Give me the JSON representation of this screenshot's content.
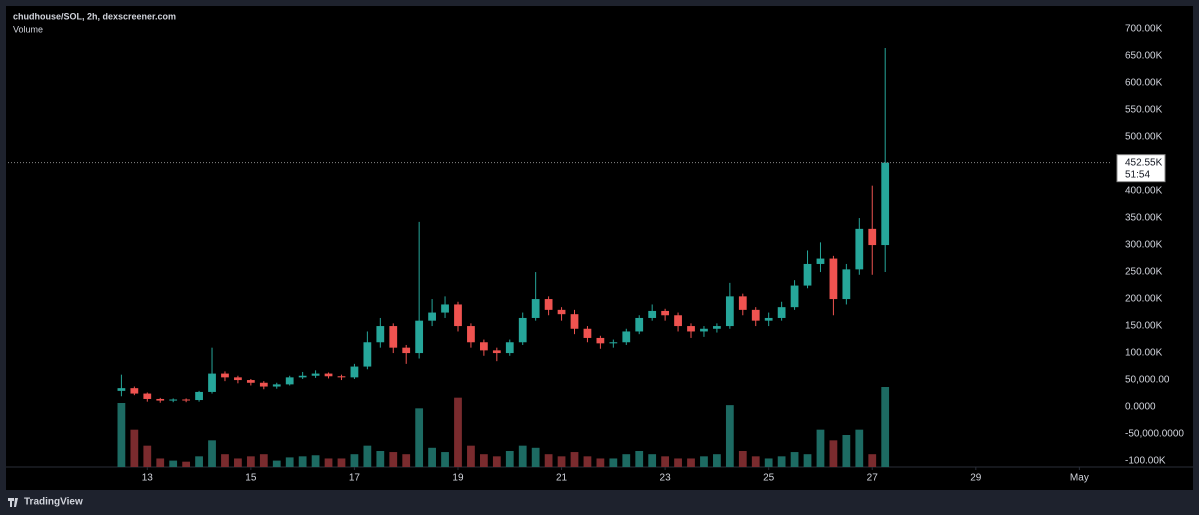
{
  "chart_data": {
    "type": "candlestick",
    "title": "chudhouse/SOL, 2h, dexscreener.com",
    "volume_label": "Volume",
    "x": [
      12.5,
      12.75,
      13,
      13.25,
      13.5,
      13.75,
      14,
      14.25,
      14.5,
      14.75,
      15,
      15.25,
      15.5,
      15.75,
      16,
      16.25,
      16.5,
      16.75,
      17,
      17.25,
      17.5,
      17.75,
      18,
      18.25,
      18.5,
      18.75,
      19,
      19.25,
      19.5,
      19.75,
      20,
      20.25,
      20.5,
      20.75,
      21,
      21.25,
      21.5,
      21.75,
      22,
      22.25,
      22.5,
      22.75,
      23,
      23.25,
      23.5,
      23.75,
      24,
      24.25,
      24.5,
      24.75,
      25,
      25.25,
      25.5,
      25.75,
      26,
      26.25,
      26.5,
      26.75,
      27,
      27.25
    ],
    "open": [
      30000,
      35000,
      25000,
      15000,
      12000,
      14000,
      13000,
      28000,
      62000,
      55000,
      50000,
      45000,
      38000,
      42000,
      55000,
      58000,
      62000,
      57000,
      55000,
      75000,
      120000,
      150000,
      110000,
      100000,
      160000,
      175000,
      190000,
      150000,
      120000,
      105000,
      100000,
      120000,
      165000,
      200000,
      180000,
      172000,
      145000,
      128000,
      118000,
      120000,
      140000,
      165000,
      178000,
      170000,
      150000,
      140000,
      145000,
      150000,
      205000,
      180000,
      160000,
      165000,
      185000,
      225000,
      265000,
      275000,
      200000,
      255000,
      330000,
      300000
    ],
    "high": [
      60000,
      38000,
      27000,
      17000,
      16000,
      16000,
      30000,
      110000,
      66000,
      58000,
      52000,
      48000,
      45000,
      58000,
      65000,
      68000,
      64000,
      60000,
      80000,
      140000,
      165000,
      155000,
      115000,
      343000,
      200000,
      205000,
      195000,
      155000,
      125000,
      110000,
      125000,
      175000,
      250000,
      205000,
      185000,
      180000,
      150000,
      132000,
      125000,
      145000,
      170000,
      190000,
      182000,
      175000,
      155000,
      150000,
      155000,
      230000,
      210000,
      185000,
      175000,
      195000,
      235000,
      290000,
      305000,
      280000,
      265000,
      350000,
      410000,
      665000
    ],
    "low": [
      20000,
      22000,
      10000,
      8000,
      9000,
      9000,
      10000,
      25000,
      48000,
      44000,
      40000,
      33000,
      34000,
      40000,
      52000,
      54000,
      53000,
      50000,
      52000,
      70000,
      110000,
      100000,
      80000,
      90000,
      150000,
      165000,
      140000,
      110000,
      95000,
      85000,
      95000,
      115000,
      160000,
      170000,
      160000,
      135000,
      120000,
      108000,
      110000,
      115000,
      135000,
      160000,
      160000,
      140000,
      128000,
      130000,
      138000,
      145000,
      170000,
      150000,
      150000,
      160000,
      180000,
      220000,
      250000,
      170000,
      190000,
      245000,
      245000,
      250000
    ],
    "close": [
      35000,
      25000,
      15000,
      12000,
      14000,
      13000,
      28000,
      62000,
      55000,
      50000,
      45000,
      38000,
      42000,
      55000,
      58000,
      62000,
      57000,
      55000,
      75000,
      120000,
      150000,
      110000,
      100000,
      160000,
      175000,
      190000,
      150000,
      120000,
      105000,
      100000,
      120000,
      165000,
      200000,
      180000,
      172000,
      145000,
      128000,
      118000,
      120000,
      140000,
      165000,
      178000,
      170000,
      150000,
      140000,
      145000,
      150000,
      205000,
      180000,
      160000,
      165000,
      185000,
      225000,
      265000,
      275000,
      200000,
      255000,
      330000,
      300000,
      452550
    ],
    "volume": [
      60000,
      35000,
      20000,
      8000,
      6000,
      5000,
      10000,
      25000,
      12000,
      8000,
      10000,
      12000,
      6000,
      9000,
      10000,
      11000,
      8000,
      8000,
      12000,
      20000,
      15000,
      14000,
      12000,
      55000,
      18000,
      14000,
      65000,
      20000,
      12000,
      10000,
      15000,
      20000,
      18000,
      12000,
      10000,
      14000,
      10000,
      8000,
      8000,
      12000,
      15000,
      12000,
      10000,
      8000,
      8000,
      10000,
      12000,
      58000,
      15000,
      10000,
      8000,
      10000,
      14000,
      12000,
      35000,
      25000,
      30000,
      35000,
      12000,
      75000
    ],
    "up_color": "#26a69a",
    "down_color": "#ef5350",
    "up_volume_color": "#1d6b63",
    "down_volume_color": "#7a2b2e",
    "xlim": [
      10.31,
      31.63
    ],
    "xticks": [
      13,
      15,
      17,
      19,
      21,
      23,
      25,
      27,
      29,
      {
        "value": 31,
        "label": "May"
      }
    ],
    "ylim": [
      -111000,
      739000
    ],
    "yticks": [
      {
        "value": -100000,
        "label": "-100.00K"
      },
      {
        "value": -50000,
        "label": "-50,000.0000"
      },
      {
        "value": 0,
        "label": "0.0000"
      },
      {
        "value": 50000,
        "label": "50,000.00"
      },
      {
        "value": 100000,
        "label": "100.00K"
      },
      {
        "value": 150000,
        "label": "150.00K"
      },
      {
        "value": 200000,
        "label": "200.00K"
      },
      {
        "value": 250000,
        "label": "250.00K"
      },
      {
        "value": 300000,
        "label": "300.00K"
      },
      {
        "value": 350000,
        "label": "350.00K"
      },
      {
        "value": 400000,
        "label": "400.00K"
      },
      {
        "value": 450000,
        "label": "450.00K"
      },
      {
        "value": 500000,
        "label": "500.00K"
      },
      {
        "value": 550000,
        "label": "550.00K"
      },
      {
        "value": 600000,
        "label": "600.00K"
      },
      {
        "value": 650000,
        "label": "650.00K"
      },
      {
        "value": 700000,
        "label": "700.00K"
      }
    ],
    "last_price": {
      "value": 452550,
      "label": "452.55K"
    },
    "countdown": "51:54",
    "branding": "TradingView"
  }
}
